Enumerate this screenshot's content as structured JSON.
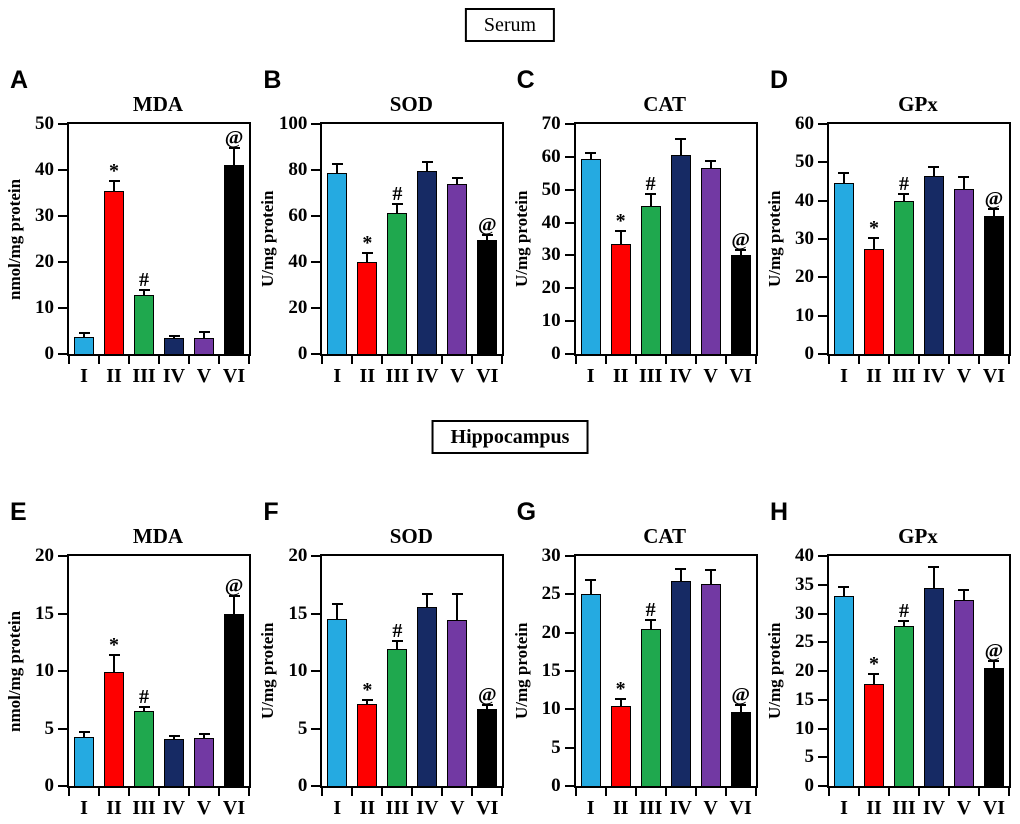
{
  "section_labels": {
    "serum": "Serum",
    "hippocampus": "Hippocampus"
  },
  "colors": {
    "bar_colors": [
      "#25AAE1",
      "#FE0000",
      "#1FA84E",
      "#162A64",
      "#7239A3",
      "#000000"
    ],
    "axis_color": "#000000",
    "error_bar_color": "#000000"
  },
  "chart_data": [
    {
      "panel": "A",
      "section": "Serum",
      "type": "bar",
      "title": "MDA",
      "ylabel": "nmol/mg protein",
      "ylim": [
        0,
        50
      ],
      "ytick_step": 10,
      "grid": false,
      "legend": "none",
      "categories": [
        "I",
        "II",
        "III",
        "IV",
        "V",
        "VI"
      ],
      "values": [
        3.8,
        35.5,
        12.8,
        3.4,
        3.4,
        41.0
      ],
      "errors": [
        0.6,
        1.8,
        0.8,
        0.3,
        1.2,
        3.5
      ],
      "sig": [
        "",
        "*",
        "#",
        "",
        "",
        "@"
      ]
    },
    {
      "panel": "B",
      "section": "Serum",
      "type": "bar",
      "title": "SOD",
      "ylabel": "U/mg protein",
      "ylim": [
        0,
        100
      ],
      "ytick_step": 20,
      "grid": false,
      "legend": "none",
      "categories": [
        "I",
        "II",
        "III",
        "IV",
        "V",
        "VI"
      ],
      "values": [
        78.5,
        40.0,
        61.5,
        79.5,
        74.0,
        49.5
      ],
      "errors": [
        3.5,
        3.5,
        3.5,
        3.5,
        2.0,
        2.0
      ],
      "sig": [
        "",
        "*",
        "#",
        "",
        "",
        "@"
      ]
    },
    {
      "panel": "C",
      "section": "Serum",
      "type": "bar",
      "title": "CAT",
      "ylabel": "U/mg protein",
      "ylim": [
        0,
        70
      ],
      "ytick_step": 10,
      "grid": false,
      "legend": "none",
      "categories": [
        "I",
        "II",
        "III",
        "IV",
        "V",
        "VI"
      ],
      "values": [
        59.5,
        33.5,
        45.0,
        60.5,
        56.5,
        30.0
      ],
      "errors": [
        1.5,
        3.5,
        3.5,
        4.5,
        2.0,
        1.5
      ],
      "sig": [
        "",
        "*",
        "#",
        "",
        "",
        "@"
      ]
    },
    {
      "panel": "D",
      "section": "Serum",
      "type": "bar",
      "title": "GPx",
      "ylabel": "U/mg protein",
      "ylim": [
        0,
        60
      ],
      "ytick_step": 10,
      "grid": false,
      "legend": "none",
      "categories": [
        "I",
        "II",
        "III",
        "IV",
        "V",
        "VI"
      ],
      "values": [
        44.5,
        27.5,
        40.0,
        46.5,
        43.0,
        36.0
      ],
      "errors": [
        2.5,
        2.5,
        1.5,
        2.0,
        3.0,
        1.5
      ],
      "sig": [
        "",
        "*",
        "#",
        "",
        "",
        "@"
      ]
    },
    {
      "panel": "E",
      "section": "Hippocampus",
      "type": "bar",
      "title": "MDA",
      "ylabel": "nmol/mg protein",
      "ylim": [
        0,
        20
      ],
      "ytick_step": 5,
      "grid": false,
      "legend": "none",
      "categories": [
        "I",
        "II",
        "III",
        "IV",
        "V",
        "VI"
      ],
      "values": [
        4.3,
        9.9,
        6.5,
        4.1,
        4.2,
        15.0
      ],
      "errors": [
        0.3,
        1.4,
        0.3,
        0.2,
        0.2,
        1.4
      ],
      "sig": [
        "",
        "*",
        "#",
        "",
        "",
        "@"
      ]
    },
    {
      "panel": "F",
      "section": "Hippocampus",
      "type": "bar",
      "title": "SOD",
      "ylabel": "U/mg protein",
      "ylim": [
        0,
        20
      ],
      "ytick_step": 5,
      "grid": false,
      "legend": "none",
      "categories": [
        "I",
        "II",
        "III",
        "IV",
        "V",
        "VI"
      ],
      "values": [
        14.5,
        7.1,
        11.9,
        15.6,
        14.4,
        6.7
      ],
      "errors": [
        1.2,
        0.3,
        0.6,
        1.0,
        2.2,
        0.3
      ],
      "sig": [
        "",
        "*",
        "#",
        "",
        "",
        "@"
      ]
    },
    {
      "panel": "G",
      "section": "Hippocampus",
      "type": "bar",
      "title": "CAT",
      "ylabel": "U/mg protein",
      "ylim": [
        0,
        30
      ],
      "ytick_step": 5,
      "grid": false,
      "legend": "none",
      "categories": [
        "I",
        "II",
        "III",
        "IV",
        "V",
        "VI"
      ],
      "values": [
        25.0,
        10.4,
        20.5,
        26.8,
        26.4,
        9.6
      ],
      "errors": [
        1.7,
        0.8,
        1.0,
        1.4,
        1.7,
        0.8
      ],
      "sig": [
        "",
        "*",
        "#",
        "",
        "",
        "@"
      ]
    },
    {
      "panel": "H",
      "section": "Hippocampus",
      "type": "bar",
      "title": "GPx",
      "ylabel": "U/mg protein",
      "ylim": [
        0,
        40
      ],
      "ytick_step": 5,
      "grid": false,
      "legend": "none",
      "categories": [
        "I",
        "II",
        "III",
        "IV",
        "V",
        "VI"
      ],
      "values": [
        33.0,
        17.8,
        27.9,
        34.5,
        32.3,
        20.5
      ],
      "errors": [
        1.5,
        1.5,
        0.7,
        3.4,
        1.7,
        1.0
      ],
      "sig": [
        "",
        "*",
        "#",
        "",
        "",
        "@"
      ]
    }
  ]
}
